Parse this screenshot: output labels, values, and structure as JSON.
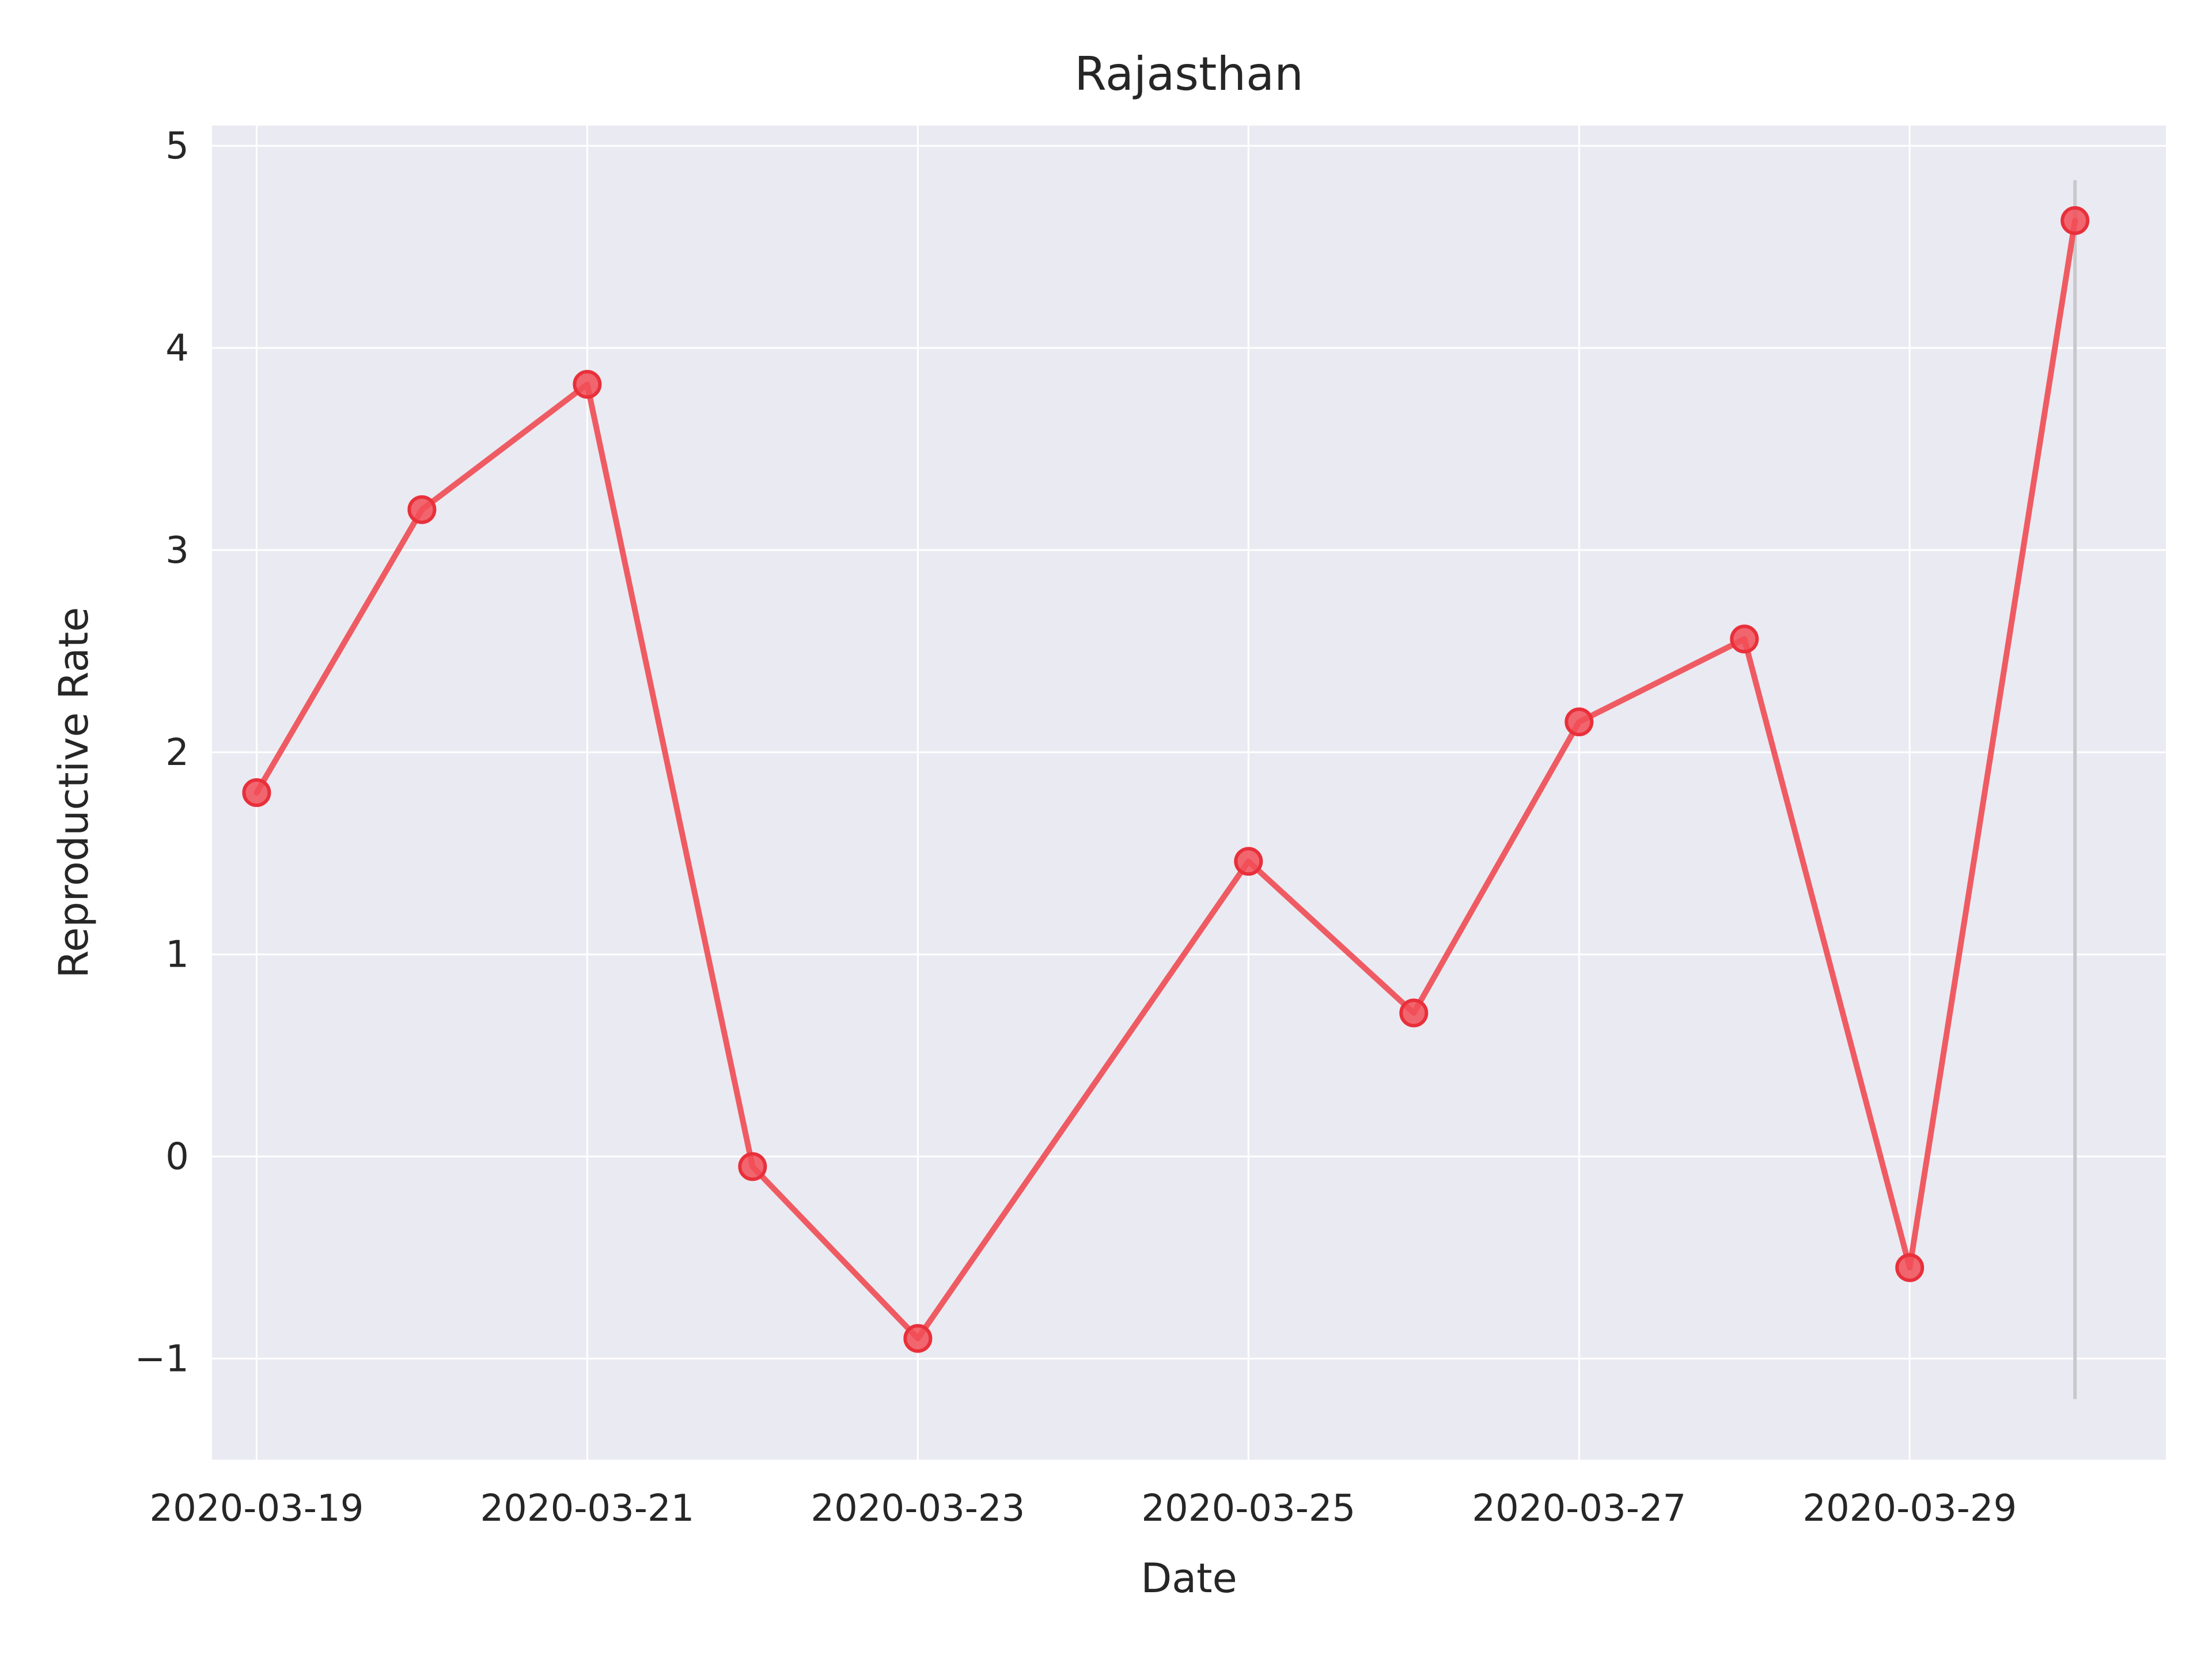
{
  "chart_data": {
    "type": "line",
    "title": "Rajasthan",
    "xlabel": "Date",
    "ylabel": "Reproductive Rate",
    "x": [
      "2020-03-19",
      "2020-03-20",
      "2020-03-21",
      "2020-03-22",
      "2020-03-23",
      "2020-03-25",
      "2020-03-26",
      "2020-03-27",
      "2020-03-28",
      "2020-03-29",
      "2020-03-30"
    ],
    "series": [
      {
        "values": [
          1.8,
          3.2,
          3.82,
          -0.05,
          -0.9,
          1.46,
          0.71,
          2.15,
          2.56,
          -0.55,
          4.63
        ]
      }
    ],
    "xtick_labels": [
      "2020-03-19",
      "2020-03-21",
      "2020-03-23",
      "2020-03-25",
      "2020-03-27",
      "2020-03-29"
    ],
    "ytick_labels": [
      "−1",
      "0",
      "1",
      "2",
      "3",
      "4",
      "5"
    ],
    "yticks": [
      -1,
      0,
      1,
      2,
      3,
      4,
      5
    ],
    "xlim": [
      "2020-03-18.73",
      "2020-03-30.55"
    ],
    "ylim": [
      -1.5,
      5.1
    ],
    "grid": true,
    "vline": {
      "x": "2020-03-30",
      "y_range": [
        -1.2,
        4.83
      ]
    },
    "colors": {
      "plot_bg": "#eaeaf2",
      "grid": "#ffffff",
      "line": "#ef5b62",
      "marker_fill": "#f24e57",
      "marker_edge": "#e8303b",
      "vline": "#c8c8cc"
    }
  }
}
